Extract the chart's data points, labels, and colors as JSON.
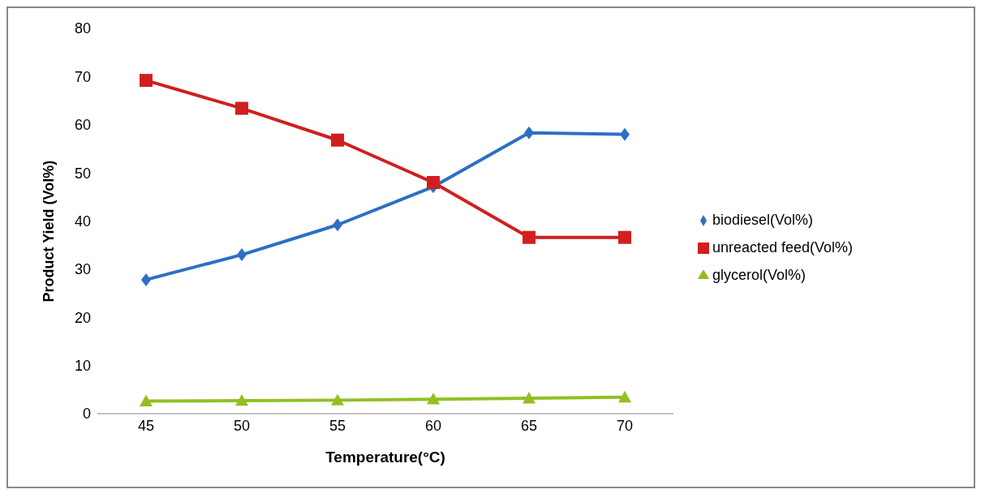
{
  "chart_data": {
    "type": "line",
    "xlabel": "Temperature(°C)",
    "ylabel": "Product Yield (Vol%)",
    "categories": [
      "45",
      "50",
      "55",
      "60",
      "65",
      "70"
    ],
    "ylim": [
      0,
      80
    ],
    "yticks": [
      0,
      10,
      20,
      30,
      40,
      50,
      60,
      70,
      80
    ],
    "grid": false,
    "legend": "right",
    "series": [
      {
        "name": "biodiesel(Vol%)",
        "color": "#2e6fc4",
        "marker": "diamond",
        "values": [
          27.8,
          33,
          39.2,
          47.1,
          58.3,
          58
        ]
      },
      {
        "name": "unreacted feed(Vol%)",
        "color": "#d11f1f",
        "marker": "square",
        "values": [
          69.2,
          63.4,
          56.8,
          48,
          36.6,
          36.6
        ]
      },
      {
        "name": "glycerol(Vol%)",
        "color": "#92c023",
        "marker": "triangle",
        "values": [
          2.6,
          2.7,
          2.8,
          3,
          3.2,
          3.4
        ]
      }
    ]
  }
}
